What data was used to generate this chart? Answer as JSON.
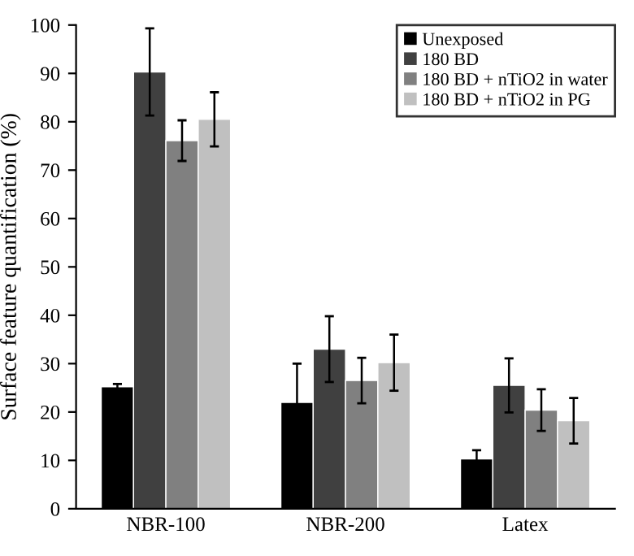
{
  "chart_data": {
    "type": "bar",
    "ylabel": "Surface feature quantification (%)",
    "categories": [
      "NBR-100",
      "NBR-200",
      "Latex"
    ],
    "series": [
      {
        "name": "Unexposed",
        "color": "#000000",
        "values": [
          25.2,
          22,
          10.3
        ],
        "errors": [
          0.6,
          8,
          1.8
        ]
      },
      {
        "name": "180 BD",
        "color": "#404040",
        "values": [
          90.3,
          33,
          25.5
        ],
        "errors": [
          9,
          6.8,
          5.6
        ]
      },
      {
        "name": "180 BD + nTiO2 in water",
        "color": "#808080",
        "values": [
          76.1,
          26.5,
          20.4
        ],
        "errors": [
          4.2,
          4.7,
          4.3
        ]
      },
      {
        "name": "180 BD + nTiO2 in PG",
        "color": "#c0c0c0",
        "values": [
          80.5,
          30.2,
          18.2
        ],
        "errors": [
          5.6,
          5.8,
          4.7
        ]
      }
    ],
    "ylim": [
      0,
      100
    ],
    "yticks": [
      0,
      10,
      20,
      30,
      40,
      50,
      60,
      70,
      80,
      90,
      100
    ],
    "legend": "top right",
    "grid": false
  }
}
